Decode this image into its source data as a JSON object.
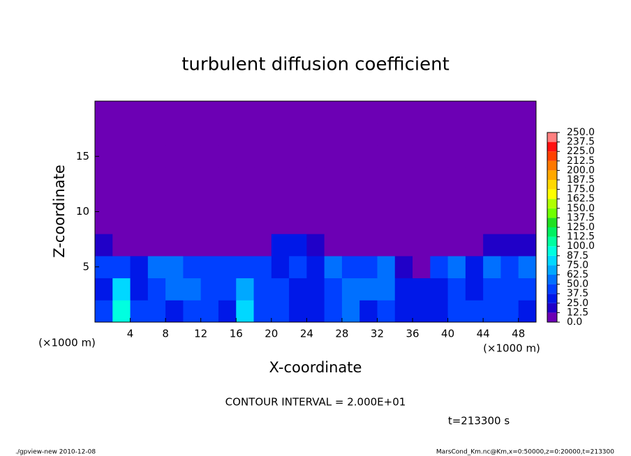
{
  "chart_data": {
    "type": "contour",
    "title": "turbulent diffusion coefficient",
    "x_label": "X-coordinate",
    "y_label": "Z-coordinate",
    "x_unit": "(×1000 m)",
    "xlim": [
      0,
      50
    ],
    "xticks": [
      4,
      8,
      12,
      16,
      20,
      24,
      28,
      32,
      36,
      40,
      44,
      48
    ],
    "ylim": [
      0,
      20
    ],
    "yticks": [
      5,
      10,
      15
    ],
    "x": [
      1,
      3,
      5,
      7,
      9,
      11,
      13,
      15,
      17,
      19,
      21,
      23,
      25,
      27,
      29,
      31,
      33,
      35,
      37,
      39,
      41,
      43,
      45,
      47,
      49
    ],
    "y": [
      1,
      3,
      5,
      7,
      9,
      11,
      13,
      15,
      17,
      19
    ],
    "z": [
      [
        40,
        90,
        45,
        40,
        35,
        45,
        40,
        30,
        80,
        40,
        40,
        35,
        30,
        45,
        60,
        35,
        40,
        35,
        35,
        30,
        40,
        45,
        40,
        45,
        35
      ],
      [
        35,
        80,
        35,
        45,
        60,
        50,
        45,
        40,
        70,
        45,
        40,
        30,
        35,
        40,
        55,
        50,
        60,
        35,
        30,
        35,
        40,
        35,
        45,
        40,
        40
      ],
      [
        45,
        45,
        30,
        60,
        55,
        45,
        40,
        45,
        45,
        40,
        35,
        40,
        25,
        50,
        45,
        40,
        55,
        15,
        10,
        45,
        55,
        25,
        60,
        45,
        50
      ],
      [
        20,
        10,
        5,
        5,
        5,
        5,
        5,
        5,
        5,
        5,
        25,
        30,
        20,
        5,
        5,
        5,
        5,
        5,
        5,
        5,
        5,
        10,
        15,
        20,
        15
      ],
      [
        0,
        0,
        0,
        0,
        0,
        0,
        0,
        0,
        0,
        0,
        0,
        0,
        0,
        0,
        0,
        0,
        0,
        0,
        0,
        0,
        0,
        0,
        0,
        0,
        0
      ],
      [
        0,
        0,
        0,
        0,
        0,
        0,
        0,
        0,
        0,
        0,
        0,
        0,
        0,
        0,
        0,
        0,
        0,
        0,
        0,
        0,
        0,
        0,
        0,
        0,
        0
      ],
      [
        0,
        0,
        0,
        0,
        0,
        0,
        0,
        0,
        0,
        0,
        0,
        0,
        0,
        0,
        0,
        0,
        0,
        0,
        0,
        0,
        0,
        0,
        0,
        0,
        0
      ],
      [
        0,
        0,
        0,
        0,
        0,
        0,
        0,
        0,
        0,
        0,
        0,
        0,
        0,
        0,
        0,
        0,
        0,
        0,
        0,
        0,
        0,
        0,
        0,
        0,
        0
      ],
      [
        0,
        0,
        0,
        0,
        0,
        0,
        0,
        0,
        0,
        0,
        0,
        0,
        0,
        0,
        0,
        0,
        0,
        0,
        0,
        0,
        0,
        0,
        0,
        0,
        0
      ],
      [
        0,
        0,
        0,
        0,
        0,
        0,
        0,
        0,
        0,
        0,
        0,
        0,
        0,
        0,
        0,
        0,
        0,
        0,
        0,
        0,
        0,
        0,
        0,
        0,
        0
      ]
    ],
    "levels": [
      {
        "value": 0,
        "label": "0.0"
      },
      12.5,
      {
        "value": 25,
        "label": "25.0"
      },
      37.5,
      {
        "value": 50,
        "label": "50.0"
      },
      62.5,
      {
        "value": 75,
        "label": "75.0"
      },
      87.5,
      {
        "value": 100,
        "label": "100.0"
      },
      112.5,
      {
        "value": 125,
        "label": "125.0"
      },
      137.5,
      {
        "value": 150,
        "label": "150.0"
      },
      162.5,
      {
        "value": 175,
        "label": "175.0"
      },
      187.5,
      {
        "value": 200,
        "label": "200.0"
      },
      212.5,
      {
        "value": 225,
        "label": "225.0"
      },
      237.5,
      {
        "value": 250,
        "label": "250.0"
      }
    ],
    "colors": [
      "#6c00b4",
      "#2000c8",
      "#0018e8",
      "#0040ff",
      "#0070ff",
      "#00a8ff",
      "#00d8ff",
      "#00ffe0",
      "#00ffa0",
      "#00f060",
      "#20e020",
      "#70ff00",
      "#b0ff00",
      "#ffff00",
      "#ffd800",
      "#ffa800",
      "#ff7800",
      "#ff4000",
      "#ff1010",
      "#ff8080"
    ],
    "annotations": [
      "CONTOUR INTERVAL = 2.000E+01",
      "t=213300 s"
    ],
    "footer": [
      "./gpview-new  2010-12-08",
      "MarsCond_Km.nc@Km,x=0:50000,z=0:20000,t=213300"
    ]
  }
}
